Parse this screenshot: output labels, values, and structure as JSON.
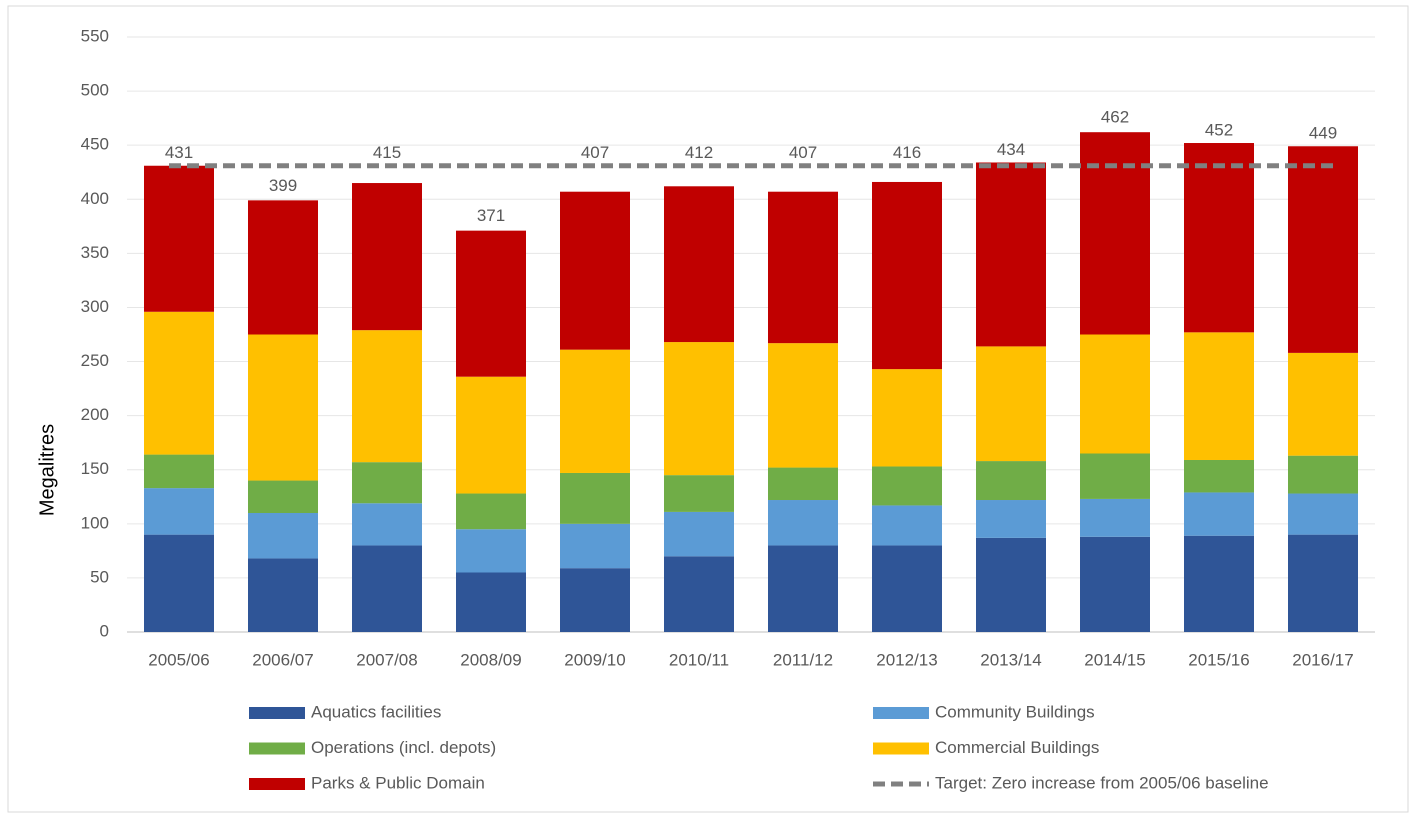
{
  "chart_data": {
    "type": "stacked_bar",
    "ylabel": "Megalitres",
    "categories": [
      "2005/06",
      "2006/07",
      "2007/08",
      "2008/09",
      "2009/10",
      "2010/11",
      "2011/12",
      "2012/13",
      "2013/14",
      "2014/15",
      "2015/16",
      "2016/17"
    ],
    "series": [
      {
        "name": "Aquatics facilities",
        "color": "#2f5597",
        "values": [
          90,
          68,
          80,
          55,
          59,
          70,
          80,
          80,
          87,
          88,
          89,
          90
        ]
      },
      {
        "name": "Community Buildings",
        "color": "#5b9bd5",
        "values": [
          43,
          42,
          39,
          40,
          41,
          41,
          42,
          37,
          35,
          35,
          40,
          38
        ]
      },
      {
        "name": "Operations (incl. depots)",
        "color": "#70ad47",
        "values": [
          31,
          30,
          38,
          33,
          47,
          34,
          30,
          36,
          36,
          42,
          30,
          35
        ]
      },
      {
        "name": "Commercial Buildings",
        "color": "#ffc000",
        "values": [
          132,
          135,
          122,
          108,
          114,
          123,
          115,
          90,
          106,
          110,
          118,
          95
        ]
      },
      {
        "name": "Parks & Public Domain",
        "color": "#c00000",
        "values": [
          135,
          124,
          136,
          135,
          146,
          144,
          140,
          173,
          170,
          187,
          175,
          191
        ]
      }
    ],
    "totals": [
      431,
      399,
      415,
      371,
      407,
      412,
      407,
      416,
      434,
      462,
      452,
      449
    ],
    "target": {
      "name": "Target: Zero increase from 2005/06 baseline",
      "value": 431,
      "color": "#808080"
    },
    "ylim": [
      0,
      550
    ],
    "yticks": [
      0,
      50,
      100,
      150,
      200,
      250,
      300,
      350,
      400,
      450,
      500,
      550
    ],
    "grid": true
  }
}
